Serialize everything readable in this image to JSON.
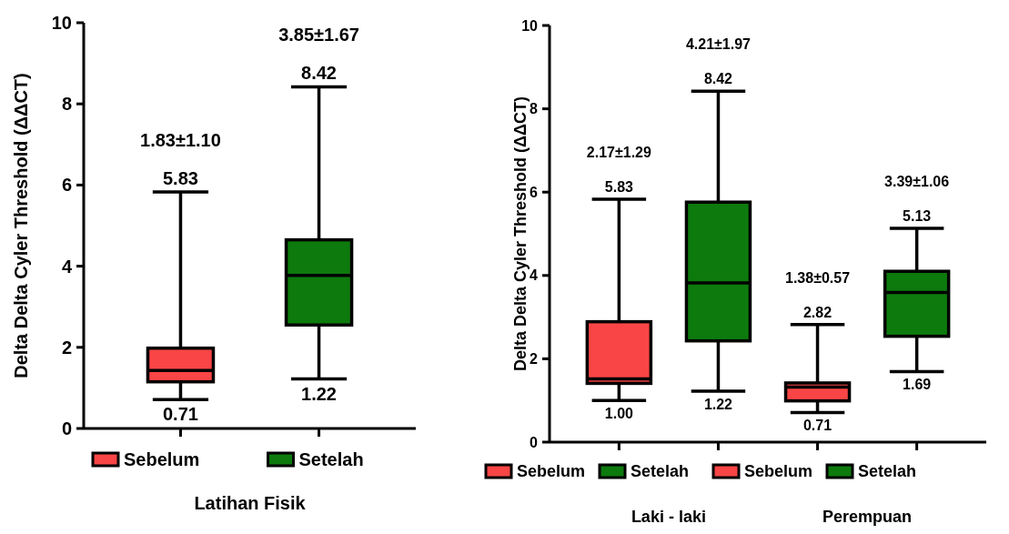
{
  "chart_data": [
    {
      "type": "box",
      "ylabel": "Delta Delta Cyler Threshold (ΔΔCT)",
      "xlabel": "Latihan Fisik",
      "categories": [
        null,
        null
      ],
      "ylim": [
        0,
        10
      ],
      "yticks": [
        0,
        2,
        4,
        6,
        8,
        10
      ],
      "legend": "bottom",
      "grid": false,
      "annotations": [
        "1.83±1.10",
        "3.85±1.67",
        {
          "text": "5.83",
          "y": 5.83
        },
        {
          "text": "0.71",
          "y": 0.71
        },
        {
          "text": "8.42",
          "y": 8.42
        },
        {
          "text": "1.22",
          "y": 1.22
        }
      ],
      "series": [
        {
          "name": "Sebelum",
          "color": "#f94545",
          "boxes": [
            {
              "low": 0.71,
              "q1": 1.15,
              "median": 1.43,
              "q3": 1.98,
              "high": 5.83
            },
            null
          ]
        },
        {
          "name": "Setelah",
          "color": "#0d7a0d",
          "boxes": [
            null,
            {
              "low": 1.22,
              "q1": 2.55,
              "median": 3.77,
              "q3": 4.65,
              "high": 8.42
            }
          ]
        }
      ]
    },
    {
      "type": "box",
      "ylabel": "Delta Delta Cyler Threshold (ΔΔCT)",
      "categories": [
        null,
        null,
        null,
        null
      ],
      "ylim": [
        0,
        10
      ],
      "yticks": [
        0,
        2,
        4,
        6,
        8,
        10
      ],
      "legend": "bottom",
      "grid": false,
      "annotations": [
        "2.17±1.29",
        "4.21±1.97",
        "1.38±0.57",
        "3.39±1.06",
        "Laki - laki",
        "Perempuan",
        {
          "text": "5.83",
          "y": 5.83
        },
        {
          "text": "1.00",
          "y": 1.0
        },
        {
          "text": "8.42",
          "y": 8.42
        },
        {
          "text": "1.22",
          "y": 1.22
        },
        {
          "text": "2.82",
          "y": 2.82
        },
        {
          "text": "0.71",
          "y": 0.71
        },
        {
          "text": "5.13",
          "y": 5.13
        },
        {
          "text": "1.69",
          "y": 1.69
        }
      ],
      "series": [
        {
          "name": "Sebelum",
          "color": "#f94545",
          "boxes": [
            {
              "low": 1.0,
              "q1": 1.41,
              "median": 1.52,
              "q3": 2.89,
              "high": 5.83
            },
            null,
            {
              "low": 0.71,
              "q1": 0.99,
              "median": 1.32,
              "q3": 1.42,
              "high": 2.82
            },
            null
          ]
        },
        {
          "name": "Setelah",
          "color": "#0d7a0d",
          "boxes": [
            null,
            {
              "low": 1.22,
              "q1": 2.43,
              "median": 3.82,
              "q3": 5.76,
              "high": 8.42
            },
            null,
            {
              "low": 1.69,
              "q1": 2.54,
              "median": 3.59,
              "q3": 4.1,
              "high": 5.13
            }
          ]
        }
      ]
    }
  ]
}
